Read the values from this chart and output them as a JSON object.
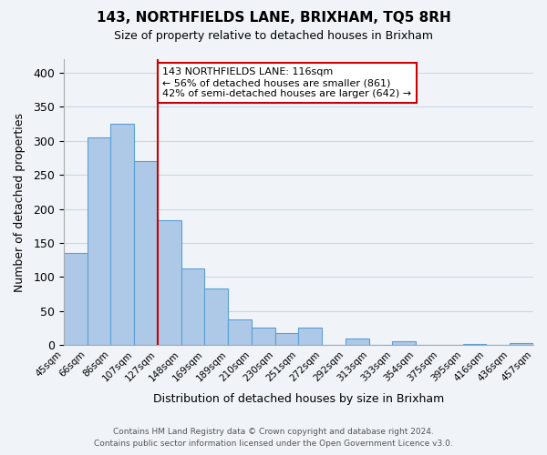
{
  "title": "143, NORTHFIELDS LANE, BRIXHAM, TQ5 8RH",
  "subtitle": "Size of property relative to detached houses in Brixham",
  "xlabel": "Distribution of detached houses by size in Brixham",
  "ylabel": "Number of detached properties",
  "bar_values": [
    135,
    305,
    325,
    270,
    183,
    112,
    83,
    37,
    26,
    18,
    25,
    0,
    10,
    0,
    5,
    0,
    0,
    2,
    0,
    3
  ],
  "bar_labels": [
    "45sqm",
    "66sqm",
    "86sqm",
    "107sqm",
    "127sqm",
    "148sqm",
    "169sqm",
    "189sqm",
    "210sqm",
    "230sqm",
    "251sqm",
    "272sqm",
    "292sqm",
    "313sqm",
    "333sqm",
    "354sqm",
    "375sqm",
    "395sqm",
    "416sqm",
    "436sqm",
    "457sqm"
  ],
  "bar_color": "#aec9e8",
  "bar_edge_color": "#5a9fd4",
  "vline_x": 3.5,
  "vline_color": "#cc0000",
  "annotation_text": "143 NORTHFIELDS LANE: 116sqm\n← 56% of detached houses are smaller (861)\n42% of semi-detached houses are larger (642) →",
  "annotation_box_color": "#ffffff",
  "annotation_box_edge": "#cc0000",
  "ylim": [
    0,
    420
  ],
  "yticks": [
    0,
    50,
    100,
    150,
    200,
    250,
    300,
    350,
    400
  ],
  "footer_line1": "Contains HM Land Registry data © Crown copyright and database right 2024.",
  "footer_line2": "Contains public sector information licensed under the Open Government Licence v3.0.",
  "bg_color": "#f0f4f8",
  "grid_color": "#c8d8e8"
}
